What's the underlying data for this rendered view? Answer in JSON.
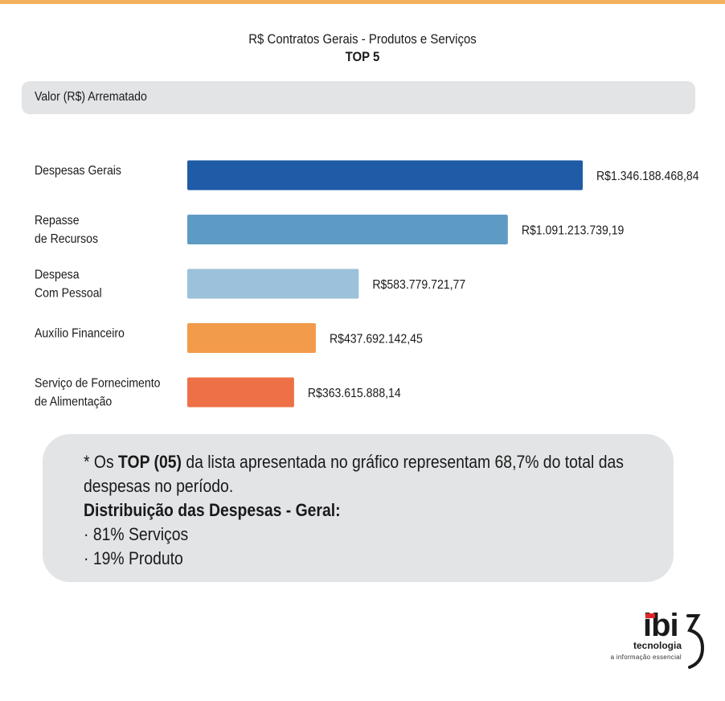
{
  "header": {
    "title": "R$ Contratos Gerais - Produtos e Serviços",
    "subtitle": "TOP 5",
    "metric_label": "Valor (R$) Arrematado"
  },
  "chart_data": {
    "type": "bar",
    "orientation": "horizontal",
    "title": "R$ Contratos Gerais - Produtos e Serviços",
    "subtitle": "TOP 5",
    "xlabel": "Valor (R$) Arrematado",
    "categories": [
      [
        "Despesas Gerais"
      ],
      [
        "Repasse",
        "de Recursos"
      ],
      [
        "Despesa",
        "Com Pessoal"
      ],
      [
        "Auxílio Financeiro"
      ],
      [
        "Serviço de Fornecimento",
        "de Alimentação"
      ]
    ],
    "values": [
      1346188468.84,
      1091213739.19,
      583779721.77,
      437692142.45,
      363615888.14
    ],
    "value_labels": [
      "R$1.346.188.468,84",
      "R$1.091.213.739,19",
      "R$583.779.721,77",
      "R$437.692.142,45",
      "R$363.615.888,14"
    ],
    "colors": [
      "#1f5ba6",
      "#5e9bc4",
      "#9cc1da",
      "#f29b4a",
      "#ee7046"
    ],
    "xlim": [
      0,
      1346188468.84
    ],
    "grid": false,
    "legend": false
  },
  "note": {
    "line1_prefix": "* Os ",
    "line1_bold": "TOP (05)",
    "line1_suffix": " da lista apresentada no gráfico representam 68,7% do total das",
    "line2": "despesas no período.",
    "heading": "Distribuição das Despesas - Geral:",
    "items": [
      "· 81% Serviços",
      "· 19% Produto"
    ]
  },
  "logo": {
    "wordmark": "ibi",
    "name": "tecnologia",
    "tagline": "a informação essencial",
    "accent_color": "#e0262a"
  },
  "theme": {
    "top_rule_color": "#f5b05e",
    "panel_color": "#e3e4e6"
  }
}
